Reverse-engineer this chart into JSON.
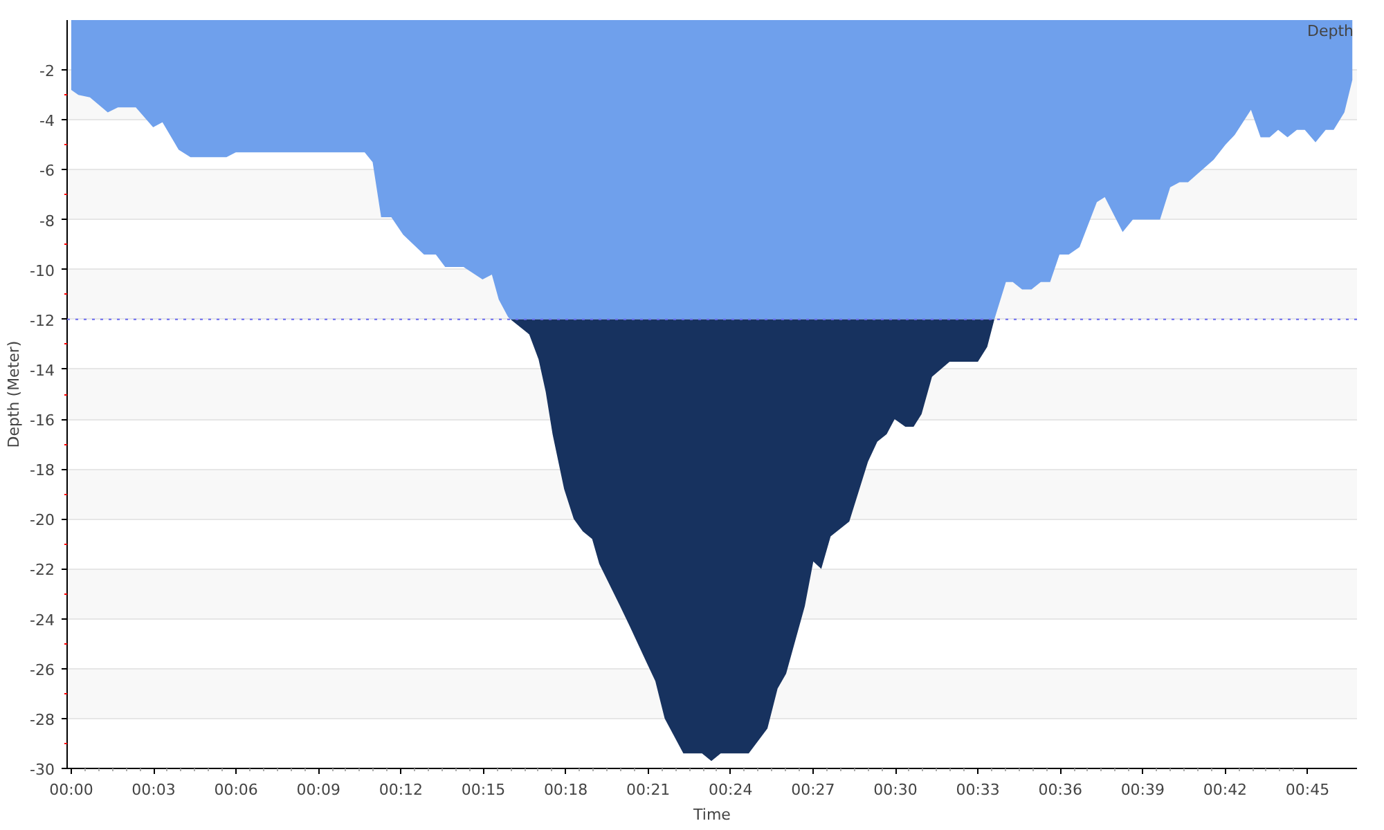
{
  "chart_data": {
    "type": "area",
    "stacked": true,
    "xlabel": "Time",
    "ylabel": "Depth (Meter)",
    "xlim": [
      -0.15,
      46.8
    ],
    "xticks": [
      {
        "value": 0,
        "label": "00:00"
      },
      {
        "value": 3,
        "label": "00:03"
      },
      {
        "value": 6,
        "label": "00:06"
      },
      {
        "value": 9,
        "label": "00:09"
      },
      {
        "value": 12,
        "label": "00:12"
      },
      {
        "value": 15,
        "label": "00:15"
      },
      {
        "value": 18,
        "label": "00:18"
      },
      {
        "value": 21,
        "label": "00:21"
      },
      {
        "value": 24,
        "label": "00:24"
      },
      {
        "value": 27,
        "label": "00:27"
      },
      {
        "value": 30,
        "label": "00:30"
      },
      {
        "value": 33,
        "label": "00:33"
      },
      {
        "value": 36,
        "label": "00:36"
      },
      {
        "value": 39,
        "label": "00:39"
      },
      {
        "value": 42,
        "label": "00:42"
      },
      {
        "value": 45,
        "label": "00:45"
      }
    ],
    "ylim": [
      -30,
      0
    ],
    "yticks": [
      -30,
      -28,
      -26,
      -24,
      -22,
      -20,
      -18,
      -16,
      -14,
      -12,
      -10,
      -8,
      -6,
      -4,
      -2
    ],
    "grid": "y",
    "legend": "top right",
    "x": [
      0,
      0.26,
      0.68,
      1.33,
      1.7,
      2.35,
      2.98,
      3.32,
      3.91,
      4.34,
      5.65,
      5.99,
      10.68,
      10.97,
      11.28,
      11.65,
      12.08,
      12.84,
      13.27,
      13.61,
      14.28,
      14.97,
      15.31,
      15.56,
      15.9,
      15.99,
      16.67,
      17.01,
      17.27,
      17.52,
      17.94,
      18.29,
      18.62,
      18.96,
      19.22,
      19.98,
      20.33,
      20.92,
      21.26,
      21.6,
      22.28,
      22.96,
      23.3,
      23.64,
      24.66,
      25.34,
      25.71,
      26.02,
      26.7,
      27.01,
      27.3,
      27.64,
      28.32,
      29.0,
      29.34,
      29.68,
      29.97,
      30.36,
      30.66,
      30.95,
      31.33,
      31.97,
      33.0,
      33.34,
      33.6,
      34.02,
      34.27,
      34.61,
      34.95,
      35.29,
      35.63,
      35.97,
      36.31,
      36.7,
      37.33,
      37.62,
      38.27,
      38.64,
      39.63,
      40.0,
      40.34,
      40.65,
      41.58,
      42.01,
      42.35,
      42.94,
      43.29,
      43.62,
      43.93,
      44.27,
      44.61,
      44.9,
      45.29,
      45.66,
      45.95,
      46.34,
      46.63
    ],
    "series": [
      {
        "name": "Depth",
        "color": "#6fa0ec",
        "values": [
          -2.8,
          -3.0,
          -3.1,
          -3.7,
          -3.5,
          -3.5,
          -4.3,
          -4.1,
          -5.2,
          -5.5,
          -5.5,
          -5.3,
          -5.3,
          -5.7,
          -7.9,
          -7.9,
          -8.6,
          -9.4,
          -9.4,
          -9.9,
          -9.9,
          -10.4,
          -10.2,
          -11.2,
          -11.9,
          -12.0,
          -12.0,
          -12.0,
          -12.0,
          -12.0,
          -12.0,
          -12.0,
          -12.0,
          -12.0,
          -12.0,
          -12.0,
          -12.0,
          -12.0,
          -12.0,
          -12.0,
          -12.0,
          -12.0,
          -12.0,
          -12.0,
          -12.0,
          -12.0,
          -12.0,
          -12.0,
          -12.0,
          -12.0,
          -12.0,
          -12.0,
          -12.0,
          -12.0,
          -12.0,
          -12.0,
          -12.0,
          -12.0,
          -12.0,
          -12.0,
          -12.0,
          -12.0,
          -12.0,
          -12.0,
          -12.0,
          -10.5,
          -10.5,
          -10.8,
          -10.8,
          -10.5,
          -10.5,
          -9.4,
          -9.4,
          -9.1,
          -7.3,
          -7.1,
          -8.5,
          -8.0,
          -8.0,
          -6.7,
          -6.5,
          -6.5,
          -5.6,
          -5.0,
          -4.6,
          -3.6,
          -4.7,
          -4.7,
          -4.4,
          -4.7,
          -4.4,
          -4.4,
          -4.9,
          -4.4,
          -4.4,
          -3.7,
          -2.4
        ]
      },
      {
        "color": "#17325f",
        "values": [
          0,
          0,
          0,
          0,
          0,
          0,
          0,
          0,
          0,
          0,
          0,
          0,
          0,
          0,
          0,
          0,
          0,
          0,
          0,
          0,
          0,
          0,
          0,
          0,
          0,
          0,
          -0.6,
          -1.6,
          -2.9,
          -4.6,
          -6.8,
          -8.0,
          -8.5,
          -8.8,
          -9.8,
          -11.5,
          -12.3,
          -13.7,
          -14.5,
          -16.0,
          -17.4,
          -17.4,
          -17.7,
          -17.4,
          -17.4,
          -16.4,
          -14.8,
          -14.2,
          -11.5,
          -9.7,
          -10.0,
          -8.7,
          -8.1,
          -5.7,
          -4.9,
          -4.6,
          -4.0,
          -4.3,
          -4.3,
          -3.8,
          -2.3,
          -1.7,
          -1.7,
          -1.1,
          0,
          0,
          0,
          0,
          0,
          0,
          0,
          0,
          0,
          0,
          0,
          0,
          0,
          0,
          0,
          0,
          0,
          0,
          0,
          0,
          0,
          0,
          0,
          0,
          0,
          0,
          0,
          0,
          0,
          0,
          0,
          0,
          0
        ]
      }
    ],
    "ref_lines": [
      {
        "axis": "y",
        "value": -12,
        "color": "#6a6af0",
        "line_style": "dotted"
      }
    ]
  }
}
